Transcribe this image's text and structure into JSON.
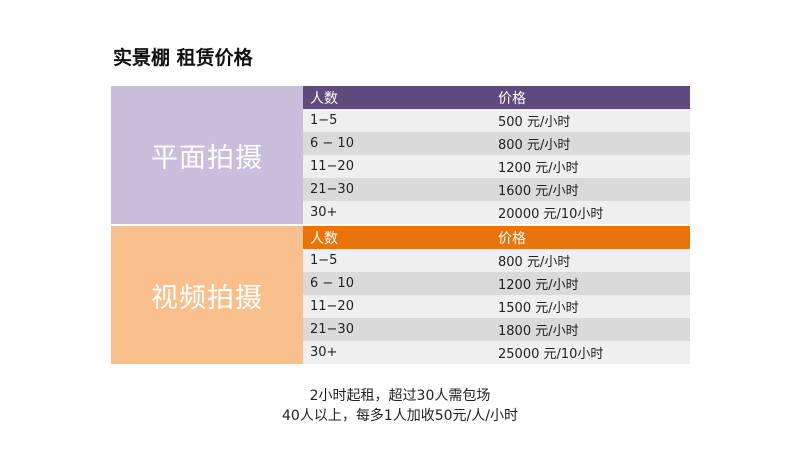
{
  "title": "实景棚 租赁价格",
  "photo": {
    "label": "平面拍摄",
    "header": {
      "count": "人数",
      "price": "价格"
    },
    "rows": [
      {
        "count": "1−5",
        "price": "500 元/小时"
      },
      {
        "count": "6 − 10",
        "price": "800 元/小时"
      },
      {
        "count": "11−20",
        "price": "1200 元/小时"
      },
      {
        "count": "21−30",
        "price": "1600 元/小时"
      },
      {
        "count": "30+",
        "price": "20000 元/10小时"
      }
    ]
  },
  "video": {
    "label": "视频拍摄",
    "header": {
      "count": "人数",
      "price": "价格"
    },
    "rows": [
      {
        "count": "1−5",
        "price": "800 元/小时"
      },
      {
        "count": "6 − 10",
        "price": "1200 元/小时"
      },
      {
        "count": "11−20",
        "price": "1500 元/小时"
      },
      {
        "count": "21−30",
        "price": "1800 元/小时"
      },
      {
        "count": "30+",
        "price": "25000 元/10小时"
      }
    ]
  },
  "notes": {
    "line1": "2小时起租，超过30人需包场",
    "line2": "40人以上，每多1人加收50元/人/小时"
  },
  "colors": {
    "photo_label_bg": "#c9bedb",
    "photo_header_bg": "#5e4a7c",
    "video_label_bg": "#f9c08e",
    "video_header_bg": "#e8740e"
  }
}
